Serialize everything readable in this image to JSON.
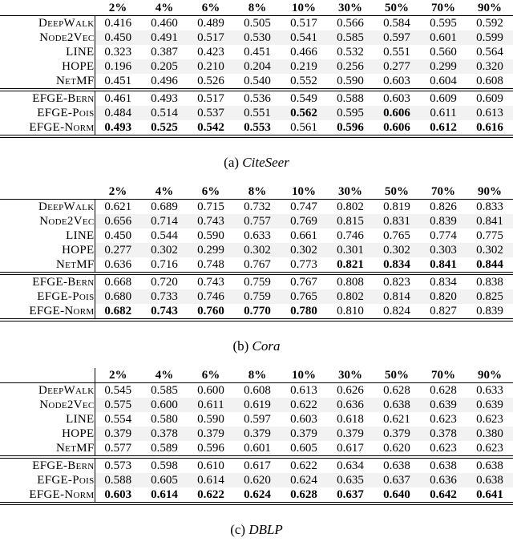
{
  "colors": {
    "row_shade": "#f2f2f2",
    "rule": "#000000",
    "text": "#000000"
  },
  "columns": [
    "2%",
    "4%",
    "6%",
    "8%",
    "10%",
    "30%",
    "50%",
    "70%",
    "90%"
  ],
  "tables": [
    {
      "caption_label": "(a)",
      "caption_name": "CiteSeer",
      "header_bar": false,
      "groups": [
        {
          "rows": [
            {
              "label": "DeepWalk",
              "values": [
                "0.416",
                "0.460",
                "0.489",
                "0.505",
                "0.517",
                "0.566",
                "0.584",
                "0.595",
                "0.592"
              ],
              "bold": []
            },
            {
              "label": "Node2Vec",
              "values": [
                "0.450",
                "0.491",
                "0.517",
                "0.530",
                "0.541",
                "0.585",
                "0.597",
                "0.601",
                "0.599"
              ],
              "bold": []
            },
            {
              "label": "LINE",
              "values": [
                "0.323",
                "0.387",
                "0.423",
                "0.451",
                "0.466",
                "0.532",
                "0.551",
                "0.560",
                "0.564"
              ],
              "bold": []
            },
            {
              "label": "HOPE",
              "values": [
                "0.196",
                "0.205",
                "0.210",
                "0.204",
                "0.219",
                "0.256",
                "0.277",
                "0.299",
                "0.320"
              ],
              "bold": []
            },
            {
              "label": "NetMF",
              "values": [
                "0.451",
                "0.496",
                "0.526",
                "0.540",
                "0.552",
                "0.590",
                "0.603",
                "0.604",
                "0.608"
              ],
              "bold": []
            }
          ]
        },
        {
          "rows": [
            {
              "label": "EFGE-Bern",
              "values": [
                "0.461",
                "0.493",
                "0.517",
                "0.536",
                "0.549",
                "0.588",
                "0.603",
                "0.609",
                "0.609"
              ],
              "bold": []
            },
            {
              "label": "EFGE-Pois",
              "values": [
                "0.484",
                "0.514",
                "0.537",
                "0.551",
                "0.562",
                "0.595",
                "0.606",
                "0.611",
                "0.613"
              ],
              "bold": [
                4,
                6
              ]
            },
            {
              "label": "EFGE-Norm",
              "values": [
                "0.493",
                "0.525",
                "0.542",
                "0.553",
                "0.561",
                "0.596",
                "0.606",
                "0.612",
                "0.616"
              ],
              "bold": [
                0,
                1,
                2,
                3,
                5,
                6,
                7,
                8
              ]
            }
          ]
        }
      ]
    },
    {
      "caption_label": "(b)",
      "caption_name": "Cora",
      "header_bar": false,
      "groups": [
        {
          "rows": [
            {
              "label": "DeepWalk",
              "values": [
                "0.621",
                "0.689",
                "0.715",
                "0.732",
                "0.747",
                "0.802",
                "0.819",
                "0.826",
                "0.833"
              ],
              "bold": []
            },
            {
              "label": "Node2Vec",
              "values": [
                "0.656",
                "0.714",
                "0.743",
                "0.757",
                "0.769",
                "0.815",
                "0.831",
                "0.839",
                "0.841"
              ],
              "bold": []
            },
            {
              "label": "LINE",
              "values": [
                "0.450",
                "0.544",
                "0.590",
                "0.633",
                "0.661",
                "0.746",
                "0.765",
                "0.774",
                "0.775"
              ],
              "bold": []
            },
            {
              "label": "HOPE",
              "values": [
                "0.277",
                "0.302",
                "0.299",
                "0.302",
                "0.302",
                "0.301",
                "0.302",
                "0.303",
                "0.302"
              ],
              "bold": []
            },
            {
              "label": "NetMF",
              "values": [
                "0.636",
                "0.716",
                "0.748",
                "0.767",
                "0.773",
                "0.821",
                "0.834",
                "0.841",
                "0.844"
              ],
              "bold": [
                5,
                6,
                7,
                8
              ]
            }
          ]
        },
        {
          "rows": [
            {
              "label": "EFGE-Bern",
              "values": [
                "0.668",
                "0.720",
                "0.743",
                "0.759",
                "0.767",
                "0.808",
                "0.823",
                "0.834",
                "0.838"
              ],
              "bold": []
            },
            {
              "label": "EFGE-Pois",
              "values": [
                "0.680",
                "0.733",
                "0.746",
                "0.759",
                "0.765",
                "0.802",
                "0.814",
                "0.820",
                "0.825"
              ],
              "bold": []
            },
            {
              "label": "EFGE-Norm",
              "values": [
                "0.682",
                "0.743",
                "0.760",
                "0.770",
                "0.780",
                "0.810",
                "0.824",
                "0.827",
                "0.839"
              ],
              "bold": [
                0,
                1,
                2,
                3,
                4
              ]
            }
          ]
        }
      ]
    },
    {
      "caption_label": "(c)",
      "caption_name": "DBLP",
      "header_bar": true,
      "groups": [
        {
          "rows": [
            {
              "label": "DeepWalk",
              "values": [
                "0.545",
                "0.585",
                "0.600",
                "0.608",
                "0.613",
                "0.626",
                "0.628",
                "0.628",
                "0.633"
              ],
              "bold": []
            },
            {
              "label": "Node2Vec",
              "values": [
                "0.575",
                "0.600",
                "0.611",
                "0.619",
                "0.622",
                "0.636",
                "0.638",
                "0.639",
                "0.639"
              ],
              "bold": []
            },
            {
              "label": "LINE",
              "values": [
                "0.554",
                "0.580",
                "0.590",
                "0.597",
                "0.603",
                "0.618",
                "0.621",
                "0.623",
                "0.623"
              ],
              "bold": []
            },
            {
              "label": "HOPE",
              "values": [
                "0.379",
                "0.378",
                "0.379",
                "0.379",
                "0.379",
                "0.379",
                "0.379",
                "0.378",
                "0.380"
              ],
              "bold": []
            },
            {
              "label": "NetMF",
              "values": [
                "0.577",
                "0.589",
                "0.596",
                "0.601",
                "0.605",
                "0.617",
                "0.620",
                "0.623",
                "0.623"
              ],
              "bold": []
            }
          ]
        },
        {
          "rows": [
            {
              "label": "EFGE-Bern",
              "values": [
                "0.573",
                "0.598",
                "0.610",
                "0.617",
                "0.622",
                "0.634",
                "0.638",
                "0.638",
                "0.638"
              ],
              "bold": []
            },
            {
              "label": "EFGE-Pois",
              "values": [
                "0.588",
                "0.605",
                "0.614",
                "0.620",
                "0.624",
                "0.635",
                "0.637",
                "0.636",
                "0.638"
              ],
              "bold": []
            },
            {
              "label": "EFGE-Norm",
              "values": [
                "0.603",
                "0.614",
                "0.622",
                "0.624",
                "0.628",
                "0.637",
                "0.640",
                "0.642",
                "0.641"
              ],
              "bold": [
                0,
                1,
                2,
                3,
                4,
                5,
                6,
                7,
                8
              ]
            }
          ]
        }
      ]
    }
  ]
}
